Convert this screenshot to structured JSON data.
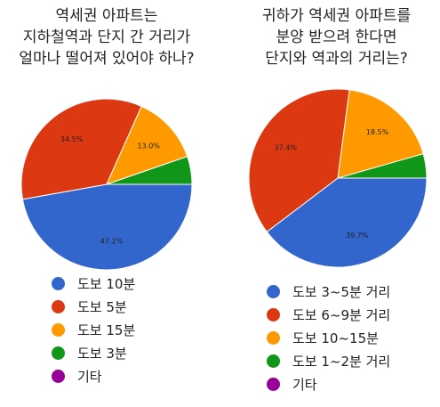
{
  "chart_data": [
    {
      "type": "pie",
      "title_lines": [
        "역세권 아파트는",
        "지하철역과 단지 간 거리가",
        "얼마나 떨어져 있어야 하나?"
      ],
      "legend_position": "bottom",
      "start_angle": 0,
      "slices": [
        {
          "name": "도보 10분",
          "value": 47.2,
          "label": "47.2%",
          "color": "#3366cc"
        },
        {
          "name": "도보 5분",
          "value": 34.5,
          "label": "34.5%",
          "color": "#dc3912"
        },
        {
          "name": "도보 15분",
          "value": 13.0,
          "label": "13.0%",
          "color": "#ff9900"
        },
        {
          "name": "도보 3분",
          "value": 5.3,
          "label": "",
          "color": "#109618"
        },
        {
          "name": "기타",
          "value": 0.0,
          "label": "",
          "color": "#990099"
        }
      ]
    },
    {
      "type": "pie",
      "title_lines": [
        "귀하가 역세권 아파트를",
        "분양 받으려 한다면",
        "단지와 역과의 거리는?"
      ],
      "legend_position": "bottom",
      "start_angle": 0,
      "slices": [
        {
          "name": "도보 3~5분 거리",
          "value": 39.7,
          "label": "39.7%",
          "color": "#3366cc"
        },
        {
          "name": "도보 6~9분 거리",
          "value": 37.4,
          "label": "37.4%",
          "color": "#dc3912"
        },
        {
          "name": "도보 10~15분",
          "value": 18.5,
          "label": "18.5%",
          "color": "#ff9900"
        },
        {
          "name": "도보 1~2분 거리",
          "value": 4.4,
          "label": "",
          "color": "#109618"
        },
        {
          "name": "기타",
          "value": 0.0,
          "label": "",
          "color": "#990099"
        }
      ]
    }
  ]
}
